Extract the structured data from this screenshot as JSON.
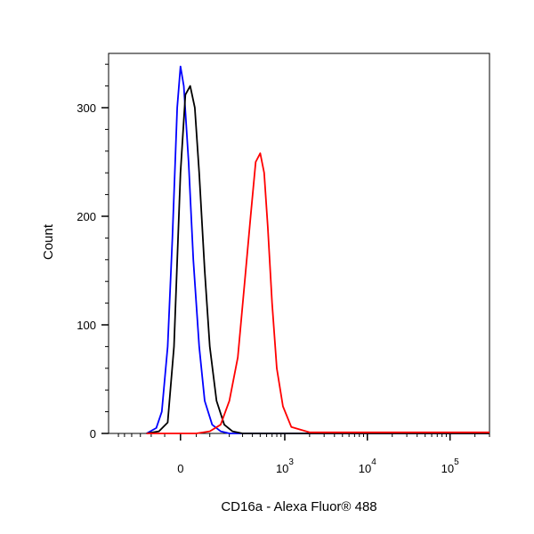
{
  "chart_data": {
    "type": "line",
    "subtype": "flow-cytometry-histogram",
    "title": "",
    "xlabel": "CD16a - Alexa Fluor® 488",
    "ylabel": "Count",
    "x_scale": "biexponential (linear near 0, log above)",
    "ylim": [
      0,
      350
    ],
    "y_ticks": [
      {
        "value": 0,
        "label": "0"
      },
      {
        "value": 100,
        "label": "100"
      },
      {
        "value": 200,
        "label": "200"
      },
      {
        "value": 300,
        "label": "300"
      }
    ],
    "x_ticks": [
      {
        "value": 0,
        "base": "0",
        "exp": ""
      },
      {
        "value": 1000,
        "base": "10",
        "exp": "3"
      },
      {
        "value": 10000,
        "base": "10",
        "exp": "4"
      },
      {
        "value": 100000,
        "base": "10",
        "exp": "5"
      }
    ],
    "grid": false,
    "legend": "none",
    "series": [
      {
        "color": "#0000ff",
        "x": [
          -120,
          -80,
          -60,
          -40,
          -25,
          -10,
          0,
          10,
          25,
          40,
          60,
          80,
          110,
          150,
          200,
          300,
          1000,
          100000,
          300000
        ],
        "y": [
          0,
          5,
          20,
          80,
          180,
          300,
          338,
          320,
          250,
          160,
          80,
          30,
          8,
          2,
          0,
          0,
          0,
          0,
          0
        ]
      },
      {
        "color": "#000000",
        "x": [
          -120,
          -70,
          -40,
          -20,
          0,
          15,
          30,
          45,
          60,
          80,
          100,
          130,
          170,
          220,
          300,
          1000,
          100000,
          300000
        ],
        "y": [
          0,
          2,
          10,
          80,
          240,
          312,
          320,
          300,
          240,
          150,
          80,
          30,
          8,
          2,
          0,
          0,
          0,
          0
        ]
      },
      {
        "color": "#ff0000",
        "x": [
          -120,
          50,
          100,
          150,
          200,
          260,
          320,
          380,
          440,
          500,
          560,
          620,
          700,
          800,
          950,
          1200,
          2000,
          100000,
          300000
        ],
        "y": [
          0,
          0,
          2,
          8,
          30,
          70,
          140,
          200,
          250,
          258,
          240,
          190,
          120,
          60,
          25,
          6,
          1,
          1,
          1
        ]
      }
    ]
  }
}
